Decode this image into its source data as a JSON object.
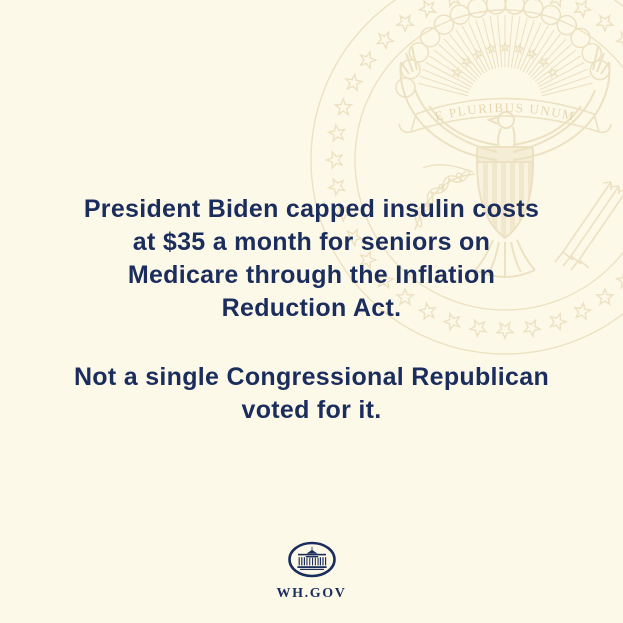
{
  "colors": {
    "background": "#fdf9e9",
    "navy": "#1b2d5c",
    "seal_tan": "#e7d9b4"
  },
  "statement": {
    "paragraph1_lines": [
      "President Biden capped insulin costs",
      "at $35 a month for seniors on",
      "Medicare through the Inflation",
      "Reduction Act."
    ],
    "paragraph2_lines": [
      "Not a single Congressional Republican",
      "voted for it."
    ]
  },
  "watermark": {
    "motto": "E PLURIBUS UNUM"
  },
  "footer": {
    "site_label": "WH.GOV"
  }
}
